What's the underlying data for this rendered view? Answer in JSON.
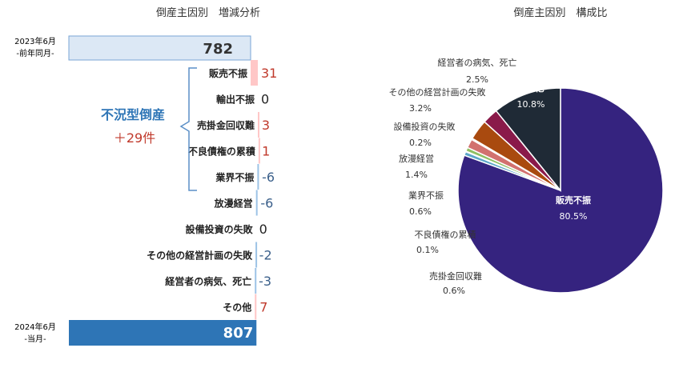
{
  "chart_data": [
    {
      "type": "waterfall",
      "title": "倒産主因別　増減分析",
      "start": {
        "label_line1": "2023年6月",
        "label_line2": "-前年同月-",
        "value": 782
      },
      "end": {
        "label_line1": "2024年6月",
        "label_line2": "-当月-",
        "value": 807
      },
      "categories": [
        "販売不振",
        "輸出不振",
        "売掛金回収難",
        "不良債権の累積",
        "業界不振",
        "放漫経営",
        "設備投資の失敗",
        "その他の経営計画の失敗",
        "経営者の病気、死亡",
        "その他"
      ],
      "values": [
        31,
        0,
        3,
        1,
        -6,
        -6,
        0,
        -2,
        -3,
        7
      ],
      "bracket": {
        "title": "不況型倒産",
        "value": "＋29件"
      },
      "colors": {
        "start": "#dce8f5",
        "end": "#2e75b6",
        "positive": "#ffc7c7",
        "negative": "#9dc3e6",
        "pos_text": "#c0392b",
        "neg_text": "#3a5f8a",
        "bracket": "#2e75b6"
      }
    },
    {
      "type": "pie",
      "title": "倒産主因別　構成比",
      "slices": [
        {
          "name": "販売不振",
          "pct": 80.5,
          "label": "80.5%",
          "color": "#35237f"
        },
        {
          "name": "売掛金回収難",
          "pct": 0.6,
          "label": "0.6%",
          "color": "#5ca6c9"
        },
        {
          "name": "不良債権の累積",
          "pct": 0.1,
          "label": "0.1%",
          "color": "#e6a2b4"
        },
        {
          "name": "業界不振",
          "pct": 0.6,
          "label": "0.6%",
          "color": "#8fbf63"
        },
        {
          "name": "放漫経営",
          "pct": 1.4,
          "label": "1.4%",
          "color": "#d2716f"
        },
        {
          "name": "設備投資の失敗",
          "pct": 0.2,
          "label": "0.2%",
          "color": "#a9c4e3"
        },
        {
          "name": "その他の経営計画の失敗",
          "pct": 3.2,
          "label": "3.2%",
          "color": "#a94a0f"
        },
        {
          "name": "経営者の病気、死亡",
          "pct": 2.5,
          "label": "2.5%",
          "color": "#8a1a4a"
        },
        {
          "name": "その他",
          "pct": 10.8,
          "label": "10.8%",
          "color": "#1f2a36"
        }
      ]
    }
  ]
}
